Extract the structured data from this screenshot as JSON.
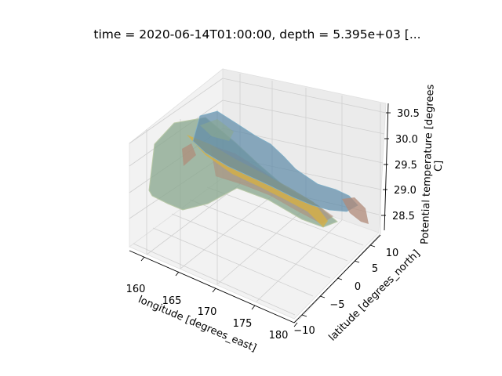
{
  "chart_data": {
    "type": "surface-3d",
    "title": "time = 2020-06-14T01:00:00, depth = 5.395e+03 [...",
    "xlabel": "longitude [degrees_east]",
    "ylabel": "latitude [degrees_north]",
    "zlabel_line1": "Potential temperature [degrees",
    "zlabel_line2": "C]",
    "x_ticks": [
      "160",
      "165",
      "170",
      "175",
      "180"
    ],
    "y_ticks": [
      "10",
      "5",
      "0",
      "−5",
      "−10"
    ],
    "z_ticks": [
      "30.5",
      "30.0",
      "29.5",
      "29.0",
      "28.5"
    ],
    "xlim": [
      158.5,
      181.5
    ],
    "ylim": [
      -12.5,
      13.5
    ],
    "zlim": [
      28.3,
      30.6
    ],
    "grid": true,
    "surface_colors": [
      "#8aa890",
      "#5e8aa8",
      "#b08a78",
      "#d8b040"
    ]
  }
}
